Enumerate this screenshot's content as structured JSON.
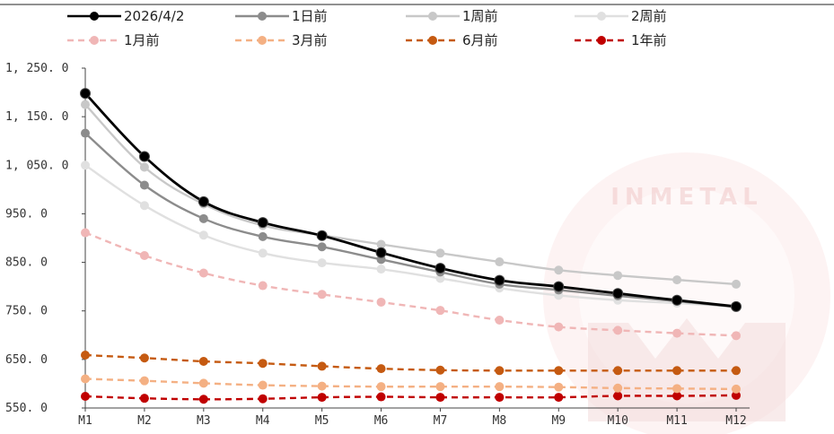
{
  "chart_data": {
    "type": "line",
    "title": "",
    "xlabel": "",
    "ylabel": "",
    "categories": [
      "M1",
      "M2",
      "M3",
      "M4",
      "M5",
      "M6",
      "M7",
      "M8",
      "M9",
      "M10",
      "M11",
      "M12"
    ],
    "ylim": [
      550,
      1250
    ],
    "yticks": [
      "1, 250. 0",
      "1, 150. 0",
      "1, 050. 0",
      "950. 0",
      "850. 0",
      "750. 0",
      "650. 0",
      "550. 0"
    ],
    "ytick_values": [
      1250,
      1150,
      1050,
      950,
      850,
      750,
      650,
      550
    ],
    "grid": false,
    "legend": "top",
    "series": [
      {
        "name": "2026/4/2",
        "color": "#000000",
        "dash": false,
        "values": [
          1198,
          1068,
          975,
          932,
          905,
          870,
          838,
          813,
          800,
          786,
          772,
          759
        ]
      },
      {
        "name": "1日前",
        "color": "#8c8c8c",
        "dash": false,
        "values": [
          1116,
          1009,
          940,
          903,
          882,
          856,
          830,
          805,
          793,
          781,
          770,
          758
        ]
      },
      {
        "name": "1周前",
        "color": "#c8c8c8",
        "dash": false,
        "values": [
          1175,
          1046,
          970,
          926,
          906,
          887,
          869,
          851,
          834,
          823,
          814,
          805
        ]
      },
      {
        "name": "2周前",
        "color": "#e0e0e0",
        "dash": false,
        "values": [
          1050,
          967,
          906,
          869,
          849,
          836,
          817,
          797,
          782,
          772,
          766,
          759
        ]
      },
      {
        "name": "1月前",
        "color": "#f0b6b6",
        "dash": true,
        "values": [
          911,
          864,
          828,
          802,
          784,
          768,
          751,
          731,
          717,
          710,
          704,
          699
        ]
      },
      {
        "name": "3月前",
        "color": "#f4b083",
        "dash": true,
        "values": [
          610,
          606,
          601,
          597,
          595,
          594,
          594,
          594,
          593,
          591,
          590,
          589
        ]
      },
      {
        "name": "6月前",
        "color": "#c55a11",
        "dash": true,
        "values": [
          659,
          653,
          646,
          642,
          636,
          631,
          628,
          627,
          627,
          627,
          627,
          627
        ]
      },
      {
        "name": "1年前",
        "color": "#c00000",
        "dash": true,
        "values": [
          574,
          570,
          568,
          569,
          572,
          573,
          572,
          572,
          572,
          575,
          575,
          576
        ]
      }
    ]
  },
  "watermark": "INMETAL"
}
